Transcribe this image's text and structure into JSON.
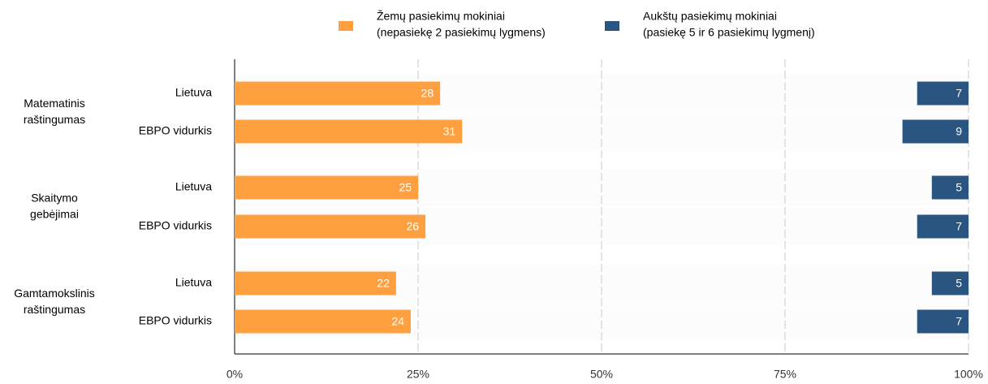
{
  "chart_data": {
    "type": "bar",
    "orientation": "horizontal",
    "groups": [
      [
        "Matematinis",
        "raštingumas"
      ],
      [
        "Skaitymo",
        "gebėjimai"
      ],
      [
        "Gamtamokslinis",
        "raštingumas"
      ]
    ],
    "categories": [
      "Lietuva",
      "EBPO vidurkis",
      "Lietuva",
      "EBPO vidurkis",
      "Lietuva",
      "EBPO vidurkis"
    ],
    "series": [
      {
        "name": "Žemų pasiekimų mokiniai",
        "description": "(nepasiekę 2 pasiekimų lygmens)",
        "color": "#ffa040",
        "anchor": "left",
        "values": [
          28,
          31,
          25,
          26,
          22,
          24
        ]
      },
      {
        "name": "Aukštų pasiekimų mokiniai",
        "description": "(pasiekę 5 ir 6 pasiekimų lygmenį)",
        "color": "#2a5580",
        "anchor": "right",
        "values": [
          7,
          9,
          5,
          7,
          5,
          7
        ]
      }
    ],
    "xlim": [
      0,
      100
    ],
    "xticks": [
      {
        "value": 0,
        "label": "0%"
      },
      {
        "value": 25,
        "label": "25%"
      },
      {
        "value": 50,
        "label": "50%"
      },
      {
        "value": 75,
        "label": "75%"
      },
      {
        "value": 100,
        "label": "100%"
      }
    ],
    "grid": true,
    "legend": "top"
  }
}
